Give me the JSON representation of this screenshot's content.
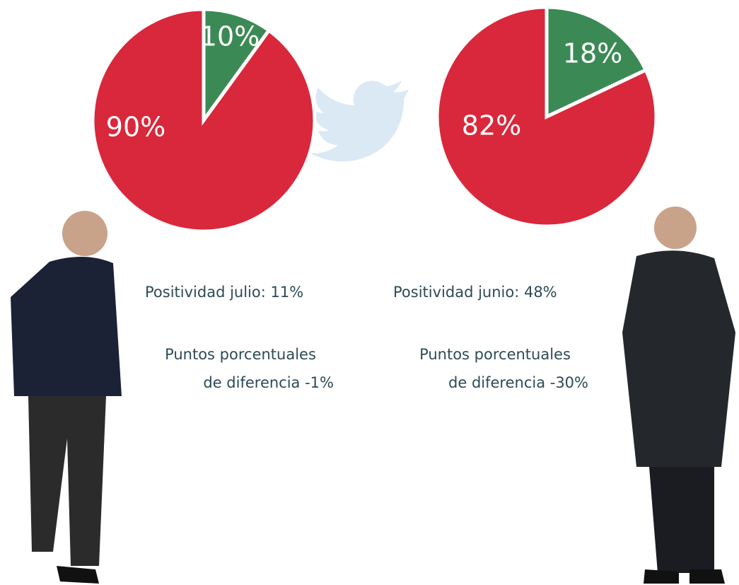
{
  "chart_data": [
    {
      "type": "pie",
      "values": [
        10,
        90
      ],
      "value_labels": [
        "10%",
        "90%"
      ],
      "colors": [
        "#3b8a55",
        "#d9283b"
      ],
      "positivity": "Positividad julio: 11%",
      "difference": [
        "Puntos porcentuales",
        "de diferencia -1%"
      ]
    },
    {
      "type": "pie",
      "values": [
        18,
        82
      ],
      "value_labels": [
        "18%",
        "82%"
      ],
      "colors": [
        "#3b8a55",
        "#d9283b"
      ],
      "positivity": "Positividad junio: 48%",
      "difference": [
        "Puntos porcentuales",
        "de diferencia -30%"
      ]
    }
  ]
}
